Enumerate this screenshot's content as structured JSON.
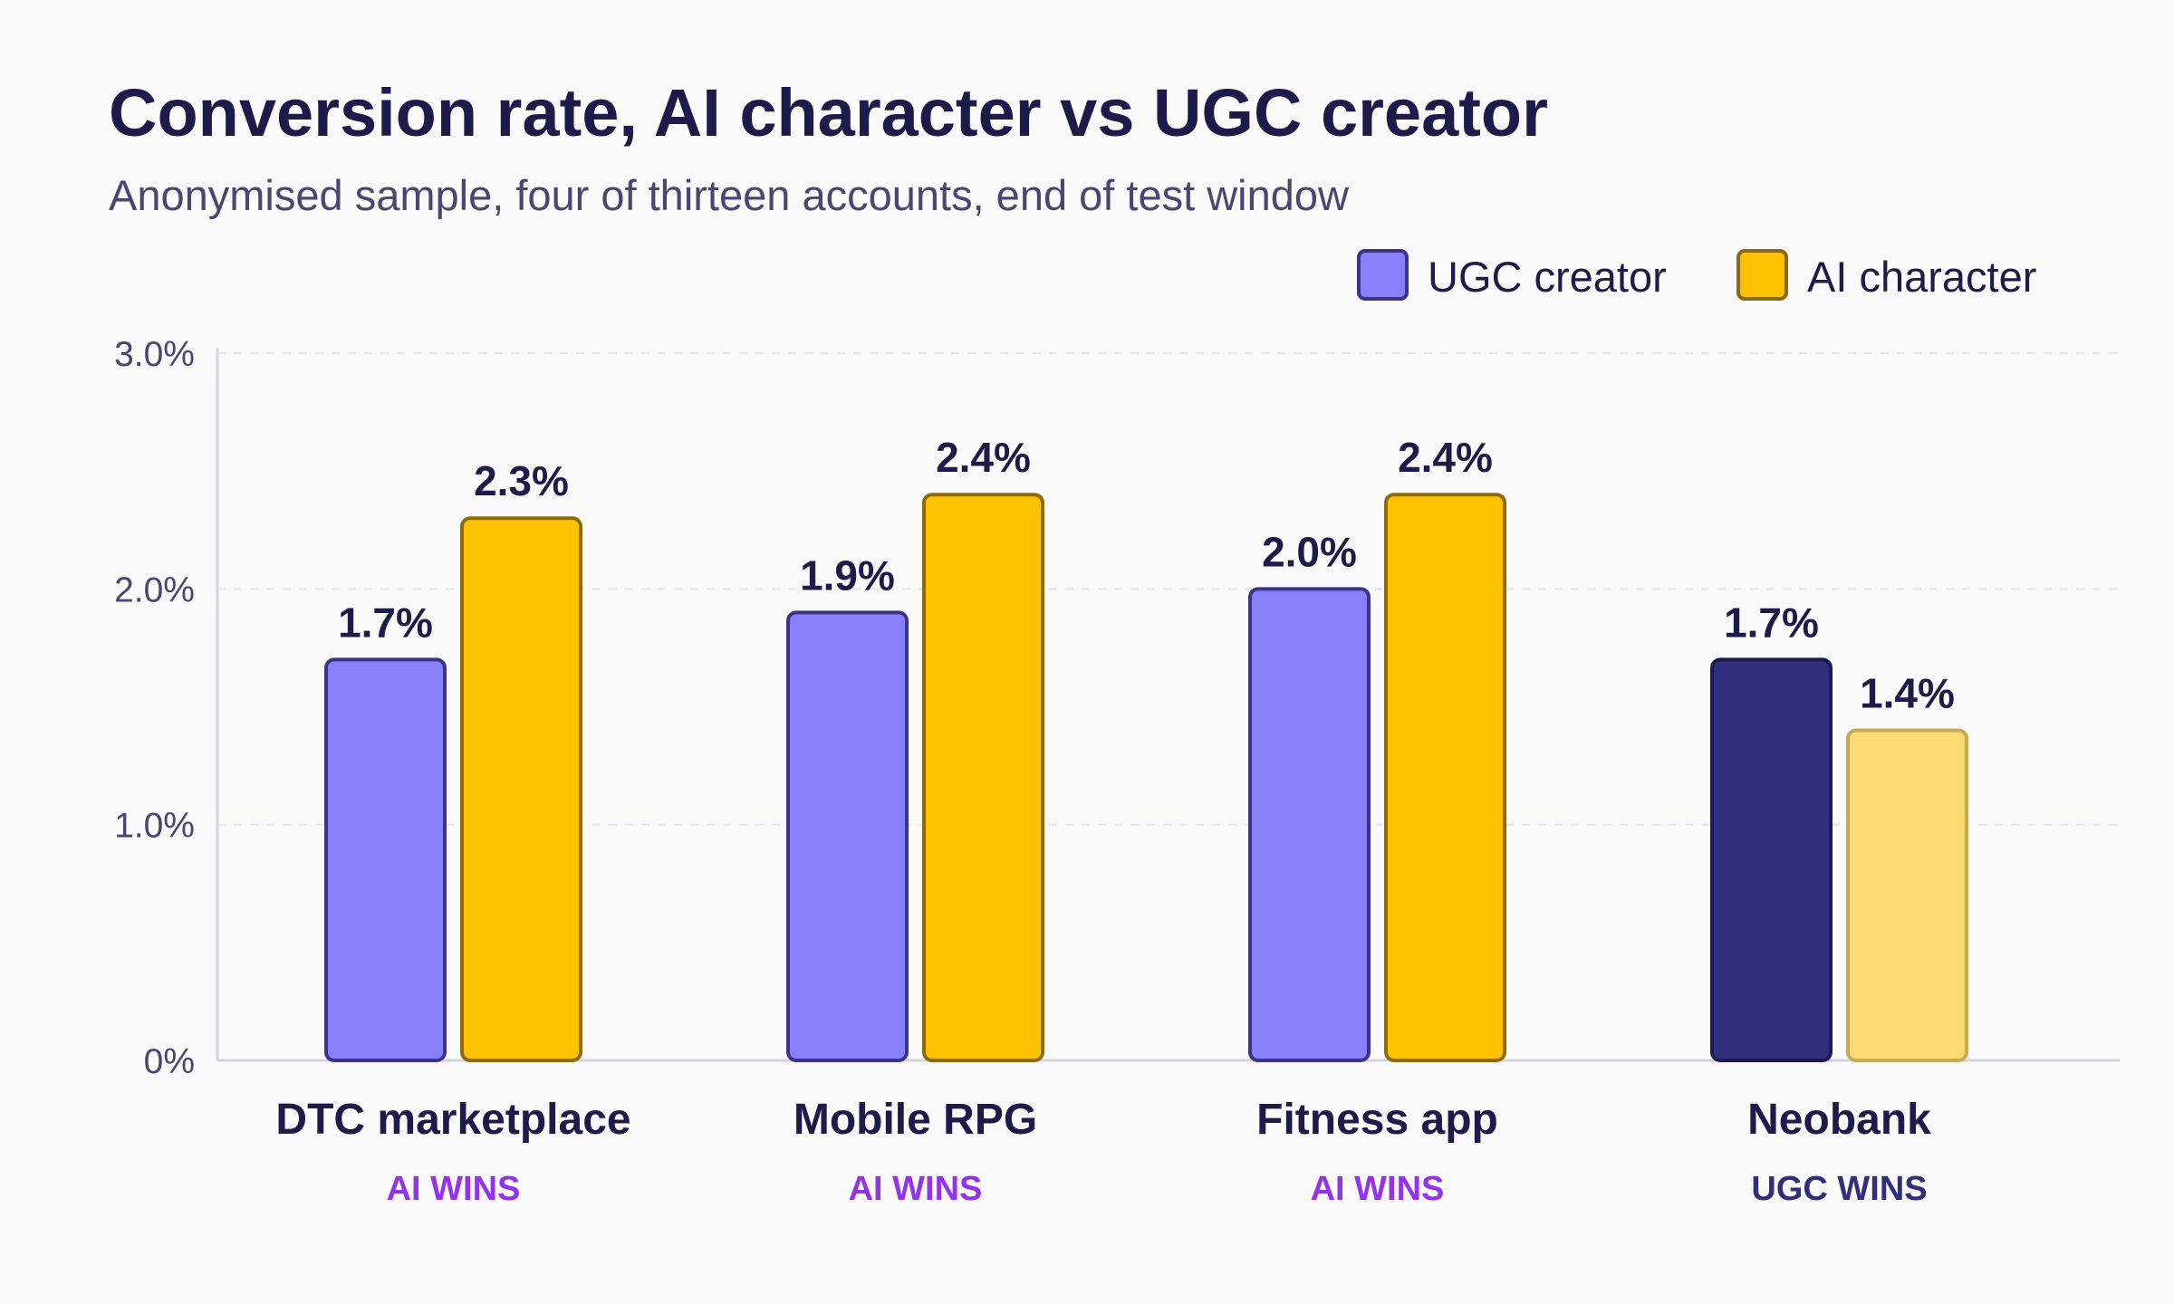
{
  "chart_data": {
    "type": "bar",
    "title": "Conversion rate, AI character vs UGC creator",
    "subtitle": "Anonymised sample, four of thirteen accounts, end of test window",
    "categories": [
      "DTC marketplace",
      "Mobile RPG",
      "Fitness app",
      "Neobank"
    ],
    "verdicts": [
      "AI WINS",
      "AI WINS",
      "AI WINS",
      "UGC WINS"
    ],
    "series": [
      {
        "name": "UGC creator",
        "values": [
          1.7,
          1.9,
          2.0,
          1.7
        ]
      },
      {
        "name": "AI character",
        "values": [
          2.3,
          2.4,
          2.4,
          1.4
        ]
      }
    ],
    "value_labels": [
      [
        "1.7%",
        "1.9%",
        "2.0%",
        "1.7%"
      ],
      [
        "2.3%",
        "2.4%",
        "2.4%",
        "1.4%"
      ]
    ],
    "ylim": [
      0,
      3.0
    ],
    "yticks": [
      0,
      1.0,
      2.0,
      3.0
    ],
    "ytick_labels": [
      "0%",
      "1.0%",
      "2.0%",
      "3.0%"
    ],
    "xlabel": "",
    "ylabel": "",
    "grid": true,
    "legend_position": "top-right",
    "colors": {
      "ugc": "#8780f8",
      "ugc_stroke": "#3a3585",
      "ugc_win": "#312e7e",
      "ugc_win_stroke": "#1e1b4b",
      "ai": "#fcc200",
      "ai_stroke": "#8c6a10",
      "ai_lose": "#fcdb73",
      "ai_lose_stroke": "#c8a85a",
      "ai_wins_text": "#9333ea",
      "ugc_wins_text": "#312e7e"
    }
  }
}
